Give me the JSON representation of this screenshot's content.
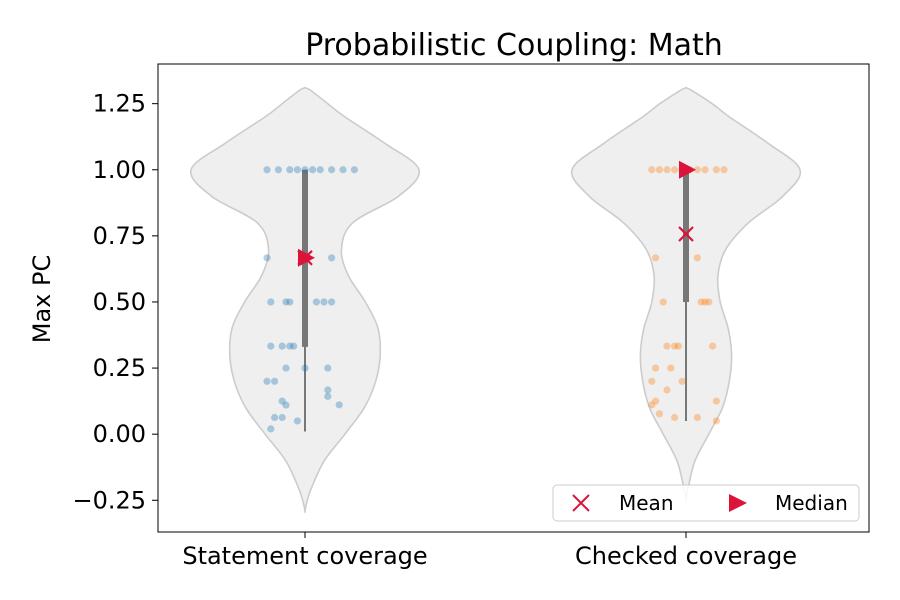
{
  "chart_data": {
    "type": "violin",
    "title": "Probabilistic Coupling: Math",
    "xlabel": "",
    "ylabel": "Max PC",
    "ylim": [
      -0.37,
      1.4
    ],
    "yticks": [
      1.25,
      1.0,
      0.75,
      0.5,
      0.25,
      0.0,
      -0.25
    ],
    "ytick_labels": [
      "1.25",
      "1.00",
      "0.75",
      "0.50",
      "0.25",
      "0.00",
      "−0.25"
    ],
    "categories": [
      "Statement coverage",
      "Checked coverage"
    ],
    "grid": false,
    "legend": {
      "placement": "lower-right",
      "entries": [
        {
          "label": "Mean",
          "marker": "x",
          "color": "#dc143c"
        },
        {
          "label": "Median",
          "marker": "triangle-right",
          "color": "#dc143c"
        }
      ]
    },
    "series": [
      {
        "category": "Statement coverage",
        "point_color": "#1f77b4",
        "mean": 0.667,
        "median": 0.667,
        "q1": 0.33,
        "q3": 1.0,
        "whisker_low": 0.01,
        "whisker_high": 1.0,
        "violin_profile": [
          [
            -0.29,
            0.0
          ],
          [
            -0.25,
            0.02
          ],
          [
            -0.2,
            0.06
          ],
          [
            -0.1,
            0.17
          ],
          [
            0.0,
            0.35
          ],
          [
            0.1,
            0.52
          ],
          [
            0.2,
            0.62
          ],
          [
            0.3,
            0.66
          ],
          [
            0.4,
            0.64
          ],
          [
            0.5,
            0.53
          ],
          [
            0.6,
            0.38
          ],
          [
            0.7,
            0.32
          ],
          [
            0.8,
            0.42
          ],
          [
            0.9,
            0.82
          ],
          [
            1.0,
            1.0
          ],
          [
            1.1,
            0.7
          ],
          [
            1.2,
            0.35
          ],
          [
            1.25,
            0.2
          ],
          [
            1.3,
            0.05
          ],
          [
            1.31,
            0.0
          ]
        ],
        "points": [
          [
            -0.1,
            1.0
          ],
          [
            -0.07,
            1.0
          ],
          [
            -0.04,
            1.0
          ],
          [
            -0.02,
            1.0
          ],
          [
            0.0,
            1.0
          ],
          [
            0.02,
            1.0
          ],
          [
            0.04,
            1.0
          ],
          [
            0.07,
            1.0
          ],
          [
            0.1,
            1.0
          ],
          [
            0.13,
            1.0
          ],
          [
            -0.1,
            0.667
          ],
          [
            0.07,
            0.667
          ],
          [
            -0.09,
            0.5
          ],
          [
            -0.05,
            0.5
          ],
          [
            -0.04,
            0.5
          ],
          [
            0.03,
            0.5
          ],
          [
            0.05,
            0.5
          ],
          [
            0.07,
            0.5
          ],
          [
            -0.09,
            0.333
          ],
          [
            -0.06,
            0.333
          ],
          [
            -0.04,
            0.333
          ],
          [
            -0.03,
            0.333
          ],
          [
            -0.05,
            0.25
          ],
          [
            0.0,
            0.25
          ],
          [
            0.06,
            0.25
          ],
          [
            -0.1,
            0.2
          ],
          [
            -0.08,
            0.2
          ],
          [
            0.06,
            0.167
          ],
          [
            0.06,
            0.143
          ],
          [
            -0.06,
            0.125
          ],
          [
            -0.05,
            0.11
          ],
          [
            0.09,
            0.111
          ],
          [
            -0.08,
            0.063
          ],
          [
            -0.06,
            0.063
          ],
          [
            -0.02,
            0.05
          ],
          [
            -0.09,
            0.02
          ]
        ]
      },
      {
        "category": "Checked coverage",
        "point_color": "#ff7f0e",
        "mean": 0.757,
        "median": 1.0,
        "q1": 0.5,
        "q3": 1.0,
        "whisker_low": 0.05,
        "whisker_high": 1.0,
        "violin_profile": [
          [
            -0.25,
            0.0
          ],
          [
            -0.2,
            0.02
          ],
          [
            -0.1,
            0.08
          ],
          [
            0.0,
            0.2
          ],
          [
            0.1,
            0.32
          ],
          [
            0.2,
            0.38
          ],
          [
            0.3,
            0.4
          ],
          [
            0.4,
            0.37
          ],
          [
            0.5,
            0.3
          ],
          [
            0.6,
            0.28
          ],
          [
            0.7,
            0.35
          ],
          [
            0.8,
            0.55
          ],
          [
            0.9,
            0.85
          ],
          [
            1.0,
            1.0
          ],
          [
            1.1,
            0.72
          ],
          [
            1.2,
            0.38
          ],
          [
            1.25,
            0.23
          ],
          [
            1.3,
            0.05
          ],
          [
            1.31,
            0.0
          ]
        ],
        "points": [
          [
            -0.09,
            1.0
          ],
          [
            -0.07,
            1.0
          ],
          [
            -0.05,
            1.0
          ],
          [
            -0.03,
            1.0
          ],
          [
            -0.01,
            1.0
          ],
          [
            0.01,
            1.0
          ],
          [
            0.03,
            1.0
          ],
          [
            0.05,
            1.0
          ],
          [
            0.08,
            1.0
          ],
          [
            0.1,
            1.0
          ],
          [
            -0.08,
            0.667
          ],
          [
            0.03,
            0.667
          ],
          [
            -0.06,
            0.5
          ],
          [
            0.04,
            0.5
          ],
          [
            0.05,
            0.5
          ],
          [
            0.06,
            0.5
          ],
          [
            -0.05,
            0.333
          ],
          [
            -0.03,
            0.333
          ],
          [
            -0.02,
            0.333
          ],
          [
            0.07,
            0.333
          ],
          [
            -0.08,
            0.25
          ],
          [
            -0.04,
            0.25
          ],
          [
            -0.09,
            0.2
          ],
          [
            -0.01,
            0.2
          ],
          [
            -0.05,
            0.167
          ],
          [
            -0.08,
            0.125
          ],
          [
            -0.09,
            0.111
          ],
          [
            0.08,
            0.125
          ],
          [
            -0.07,
            0.077
          ],
          [
            -0.03,
            0.063
          ],
          [
            0.03,
            0.063
          ],
          [
            0.08,
            0.05
          ]
        ]
      }
    ]
  }
}
